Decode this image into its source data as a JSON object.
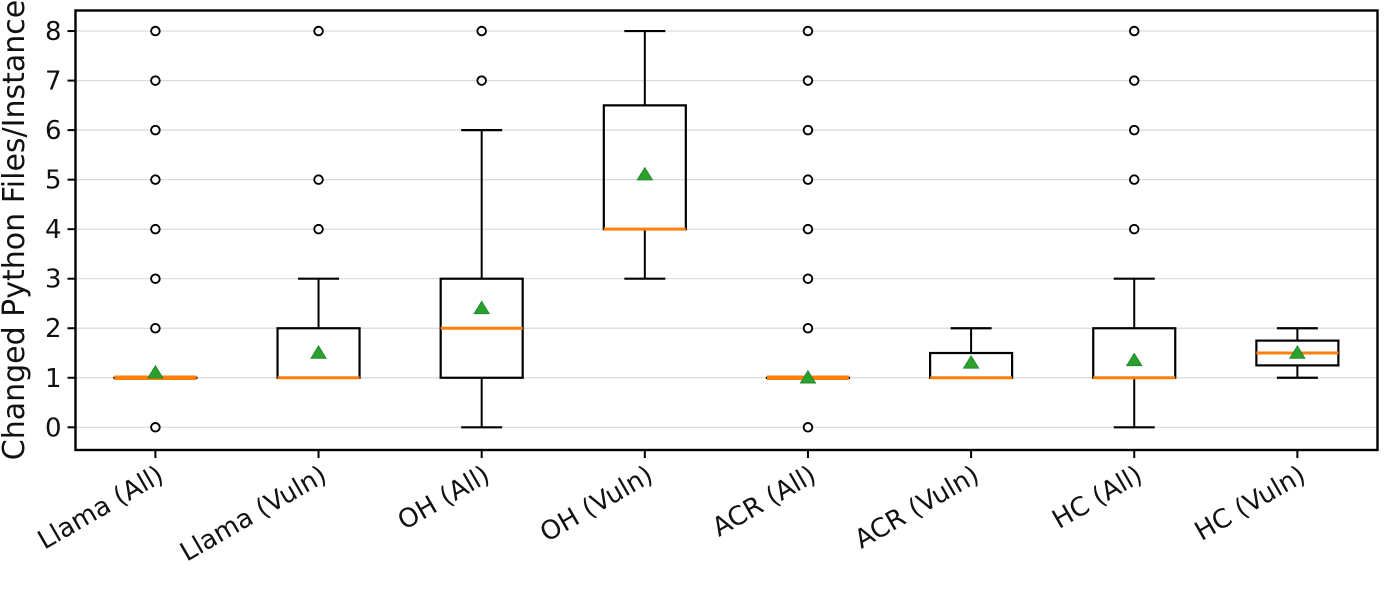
{
  "figure": {
    "background": "#ffffff"
  },
  "chart_data": {
    "type": "boxplot",
    "title": "",
    "xlabel": "",
    "ylabel": "Changed Python Files/Instance",
    "grid": "horizontal",
    "legend_position": "none",
    "ylim": [
      -0.47,
      8.42
    ],
    "yticks": [
      0,
      1,
      2,
      3,
      4,
      5,
      6,
      7,
      8
    ],
    "categories": [
      "Llama (All)",
      "Llama (Vuln)",
      "OH (All)",
      "OH (Vuln)",
      "ACR (All)",
      "ACR (Vuln)",
      "HC (All)",
      "HC (Vuln)"
    ],
    "series": [
      {
        "label": "Llama (All)",
        "whisker_low": 1,
        "q1": 1,
        "median": 1,
        "q3": 1,
        "whisker_high": 1,
        "mean": 1.1,
        "outliers": [
          0,
          2,
          3,
          4,
          5,
          6,
          7,
          8
        ]
      },
      {
        "label": "Llama (Vuln)",
        "whisker_low": 1,
        "q1": 1,
        "median": 1,
        "q3": 2,
        "whisker_high": 3,
        "mean": 1.5,
        "outliers": [
          4,
          5,
          8
        ]
      },
      {
        "label": "OH (All)",
        "whisker_low": 0,
        "q1": 1,
        "median": 2,
        "q3": 3,
        "whisker_high": 6,
        "mean": 2.4,
        "outliers": [
          7,
          8
        ]
      },
      {
        "label": "OH (Vuln)",
        "whisker_low": 3,
        "q1": 4,
        "median": 4,
        "q3": 6.5,
        "whisker_high": 8,
        "mean": 5.1,
        "outliers": []
      },
      {
        "label": "ACR (All)",
        "whisker_low": 1,
        "q1": 1,
        "median": 1,
        "q3": 1,
        "whisker_high": 1,
        "mean": 1.0,
        "outliers": [
          0,
          2,
          3,
          4,
          5,
          6,
          7,
          8
        ]
      },
      {
        "label": "ACR (Vuln)",
        "whisker_low": 1,
        "q1": 1,
        "median": 1,
        "q3": 1.5,
        "whisker_high": 2,
        "mean": 1.3,
        "outliers": []
      },
      {
        "label": "HC (All)",
        "whisker_low": 0,
        "q1": 1,
        "median": 1,
        "q3": 2,
        "whisker_high": 3,
        "mean": 1.35,
        "outliers": [
          4,
          5,
          6,
          7,
          8
        ]
      },
      {
        "label": "HC (Vuln)",
        "whisker_low": 1,
        "q1": 1.25,
        "median": 1.5,
        "q3": 1.75,
        "whisker_high": 2,
        "mean": 1.5,
        "outliers": []
      }
    ],
    "colors": {
      "median_line": "#ff7f0e",
      "mean_marker": "#2ca02c",
      "mean_marker_edge": "#1f8b2e",
      "box_edge": "#000000",
      "whisker": "#000000",
      "outlier_edge": "#000000",
      "outlier_fill": "#ffffff",
      "gridline": "#d9d9d9",
      "axis": "#000000",
      "tick_text": "#111111"
    }
  }
}
